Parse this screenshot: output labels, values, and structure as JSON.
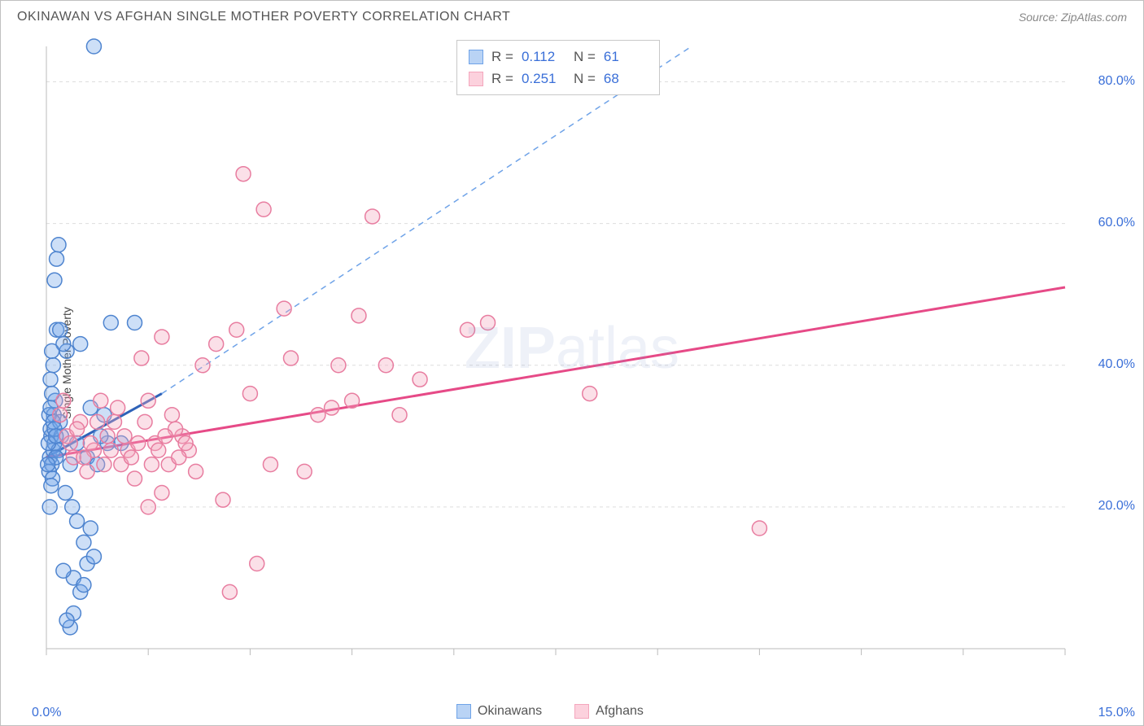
{
  "title": "OKINAWAN VS AFGHAN SINGLE MOTHER POVERTY CORRELATION CHART",
  "source": "Source: ZipAtlas.com",
  "y_axis_label": "Single Mother Poverty",
  "watermark": {
    "bold": "ZIP",
    "rest": "atlas"
  },
  "chart": {
    "type": "scatter",
    "background_color": "#ffffff",
    "grid_color": "#dddddd",
    "axis_color": "#bbbbbb",
    "xlim": [
      0,
      15
    ],
    "ylim": [
      0,
      85
    ],
    "x_ticks": [
      0,
      1.5,
      3.0,
      4.5,
      6.0,
      7.5,
      9.0,
      10.5,
      12.0,
      13.5,
      15.0
    ],
    "x_tick_labels": {
      "0": "0.0%",
      "15": "15.0%"
    },
    "y_ticks": [
      20,
      40,
      60,
      80
    ],
    "y_tick_labels": {
      "20": "20.0%",
      "40": "40.0%",
      "60": "60.0%",
      "80": "80.0%"
    },
    "marker_radius": 9,
    "marker_fill_opacity": 0.35,
    "marker_stroke_width": 1.5,
    "series": [
      {
        "name": "Okinawans",
        "color": "#6fa3e8",
        "stroke": "#4e84cf",
        "R": "0.112",
        "N": "61",
        "trend": {
          "x1": 0,
          "y1": 27,
          "x2": 1.7,
          "y2": 36,
          "dash_x2": 9.5,
          "dash_y2": 85,
          "solid_color": "#2e62b8",
          "dash_color": "#6fa3e8",
          "width": 3
        },
        "points": [
          [
            0.05,
            27
          ],
          [
            0.07,
            30
          ],
          [
            0.1,
            28
          ],
          [
            0.08,
            26
          ],
          [
            0.06,
            31
          ],
          [
            0.12,
            29
          ],
          [
            0.04,
            25
          ],
          [
            0.11,
            33
          ],
          [
            0.09,
            24
          ],
          [
            0.13,
            35
          ],
          [
            0.05,
            20
          ],
          [
            0.18,
            28
          ],
          [
            0.22,
            30
          ],
          [
            0.15,
            45
          ],
          [
            0.14,
            27
          ],
          [
            0.2,
            32
          ],
          [
            0.07,
            23
          ],
          [
            0.35,
            26
          ],
          [
            0.3,
            42
          ],
          [
            0.45,
            29
          ],
          [
            0.5,
            43
          ],
          [
            0.6,
            27
          ],
          [
            0.55,
            15
          ],
          [
            0.6,
            12
          ],
          [
            0.65,
            17
          ],
          [
            0.7,
            13
          ],
          [
            0.4,
            10
          ],
          [
            0.35,
            3
          ],
          [
            0.4,
            5
          ],
          [
            0.3,
            4
          ],
          [
            0.25,
            11
          ],
          [
            0.5,
            8
          ],
          [
            0.55,
            9
          ],
          [
            0.45,
            18
          ],
          [
            0.38,
            20
          ],
          [
            0.28,
            22
          ],
          [
            0.15,
            55
          ],
          [
            0.18,
            57
          ],
          [
            0.12,
            52
          ],
          [
            0.2,
            45
          ],
          [
            0.25,
            43
          ],
          [
            0.08,
            42
          ],
          [
            0.1,
            40
          ],
          [
            0.06,
            38
          ],
          [
            0.7,
            85
          ],
          [
            0.95,
            46
          ],
          [
            1.1,
            29
          ],
          [
            1.3,
            46
          ],
          [
            0.85,
            33
          ],
          [
            0.9,
            29
          ],
          [
            0.75,
            26
          ],
          [
            0.8,
            30
          ],
          [
            0.65,
            34
          ],
          [
            0.03,
            29
          ],
          [
            0.04,
            33
          ],
          [
            0.02,
            26
          ],
          [
            0.06,
            34
          ],
          [
            0.08,
            36
          ],
          [
            0.1,
            32
          ],
          [
            0.12,
            31
          ],
          [
            0.14,
            30
          ]
        ]
      },
      {
        "name": "Afghans",
        "color": "#f4a6bd",
        "stroke": "#e87da0",
        "R": "0.251",
        "N": "68",
        "trend": {
          "x1": 0,
          "y1": 27,
          "x2": 15,
          "y2": 51,
          "solid_color": "#e64a87",
          "width": 3
        },
        "points": [
          [
            0.3,
            30
          ],
          [
            0.5,
            32
          ],
          [
            0.7,
            28
          ],
          [
            0.8,
            35
          ],
          [
            1.0,
            32
          ],
          [
            1.2,
            28
          ],
          [
            1.4,
            41
          ],
          [
            1.5,
            35
          ],
          [
            1.6,
            29
          ],
          [
            1.7,
            44
          ],
          [
            1.8,
            26
          ],
          [
            2.0,
            30
          ],
          [
            2.2,
            25
          ],
          [
            2.3,
            40
          ],
          [
            2.5,
            43
          ],
          [
            2.6,
            21
          ],
          [
            2.7,
            8
          ],
          [
            2.8,
            45
          ],
          [
            2.9,
            67
          ],
          [
            3.0,
            36
          ],
          [
            3.1,
            12
          ],
          [
            3.2,
            62
          ],
          [
            3.3,
            26
          ],
          [
            3.5,
            48
          ],
          [
            3.6,
            41
          ],
          [
            3.8,
            25
          ],
          [
            4.0,
            33
          ],
          [
            4.2,
            34
          ],
          [
            4.3,
            40
          ],
          [
            4.5,
            35
          ],
          [
            4.6,
            47
          ],
          [
            4.8,
            61
          ],
          [
            5.0,
            40
          ],
          [
            5.2,
            33
          ],
          [
            5.5,
            38
          ],
          [
            6.2,
            45
          ],
          [
            6.5,
            46
          ],
          [
            8.0,
            36
          ],
          [
            10.5,
            17
          ],
          [
            0.4,
            27
          ],
          [
            0.6,
            25
          ],
          [
            0.9,
            30
          ],
          [
            1.1,
            26
          ],
          [
            1.3,
            24
          ],
          [
            1.5,
            20
          ],
          [
            1.7,
            22
          ],
          [
            1.9,
            31
          ],
          [
            2.1,
            28
          ],
          [
            0.2,
            33
          ],
          [
            0.25,
            35
          ],
          [
            0.35,
            29
          ],
          [
            0.45,
            31
          ],
          [
            0.55,
            27
          ],
          [
            0.65,
            29
          ],
          [
            0.75,
            32
          ],
          [
            0.85,
            26
          ],
          [
            0.95,
            28
          ],
          [
            1.05,
            34
          ],
          [
            1.15,
            30
          ],
          [
            1.25,
            27
          ],
          [
            1.35,
            29
          ],
          [
            1.45,
            32
          ],
          [
            1.55,
            26
          ],
          [
            1.65,
            28
          ],
          [
            1.75,
            30
          ],
          [
            1.85,
            33
          ],
          [
            1.95,
            27
          ],
          [
            2.05,
            29
          ]
        ]
      }
    ],
    "legend": [
      {
        "label": "Okinawans",
        "fill": "#b9d3f5",
        "stroke": "#6fa3e8"
      },
      {
        "label": "Afghans",
        "fill": "#fcd1dd",
        "stroke": "#f4a6bd"
      }
    ]
  }
}
